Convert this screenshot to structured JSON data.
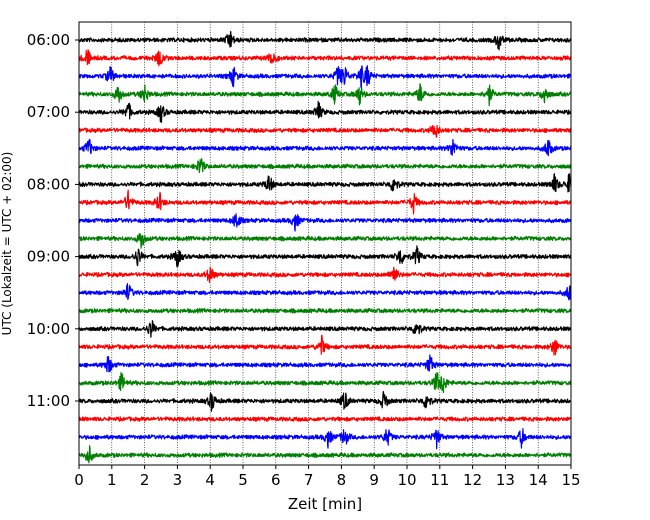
{
  "chart_data": {
    "type": "line",
    "xlabel": "Zeit  [min]",
    "ylabel": "UTC (Lokalzeit = UTC + 02:00)",
    "xlim": [
      0,
      15
    ],
    "x_ticks": [
      "0",
      "1",
      "2",
      "3",
      "4",
      "5",
      "6",
      "7",
      "8",
      "9",
      "10",
      "11",
      "12",
      "13",
      "14",
      "15"
    ],
    "y_ticks": [
      {
        "label": "06:00",
        "row": 0
      },
      {
        "label": "07:00",
        "row": 4
      },
      {
        "label": "08:00",
        "row": 8
      },
      {
        "label": "09:00",
        "row": 12
      },
      {
        "label": "10:00",
        "row": 16
      },
      {
        "label": "11:00",
        "row": 20
      }
    ],
    "vertical_grid": "dotted",
    "colors": [
      "#000000",
      "#ff0000",
      "#0000ff",
      "#008000"
    ],
    "traces": [
      {
        "row": 0,
        "start": "06:00",
        "color": "#000000",
        "events_min": [
          4.6,
          12.8
        ]
      },
      {
        "row": 1,
        "start": "06:15",
        "color": "#ff0000",
        "events_min": [
          0.25,
          2.45,
          5.9
        ]
      },
      {
        "row": 2,
        "start": "06:30",
        "color": "#0000ff",
        "events_min": [
          0.95,
          4.7,
          7.9,
          8.1,
          8.6,
          8.8
        ]
      },
      {
        "row": 3,
        "start": "06:45",
        "color": "#008000",
        "events_min": [
          1.2,
          2.0,
          7.8,
          8.55,
          10.4,
          12.5,
          14.2
        ]
      },
      {
        "row": 4,
        "start": "07:00",
        "color": "#000000",
        "events_min": [
          1.5,
          2.5,
          7.3
        ]
      },
      {
        "row": 5,
        "start": "07:15",
        "color": "#ff0000",
        "events_min": [
          10.85
        ]
      },
      {
        "row": 6,
        "start": "07:30",
        "color": "#0000ff",
        "events_min": [
          0.3,
          11.4,
          14.3
        ]
      },
      {
        "row": 7,
        "start": "07:45",
        "color": "#008000",
        "events_min": [
          3.7
        ]
      },
      {
        "row": 8,
        "start": "08:00",
        "color": "#000000",
        "events_min": [
          5.8,
          9.6,
          14.5,
          14.95
        ]
      },
      {
        "row": 9,
        "start": "08:15",
        "color": "#ff0000",
        "events_min": [
          1.5,
          2.45,
          10.2
        ]
      },
      {
        "row": 10,
        "start": "08:30",
        "color": "#0000ff",
        "events_min": [
          4.8,
          6.6
        ]
      },
      {
        "row": 11,
        "start": "08:45",
        "color": "#008000",
        "events_min": [
          1.9
        ]
      },
      {
        "row": 12,
        "start": "09:00",
        "color": "#000000",
        "events_min": [
          1.8,
          3.0,
          9.8,
          10.3
        ]
      },
      {
        "row": 13,
        "start": "09:15",
        "color": "#ff0000",
        "events_min": [
          4.0,
          9.6
        ]
      },
      {
        "row": 14,
        "start": "09:30",
        "color": "#0000ff",
        "events_min": [
          1.5,
          14.95
        ]
      },
      {
        "row": 15,
        "start": "09:45",
        "color": "#008000",
        "events_min": []
      },
      {
        "row": 16,
        "start": "10:00",
        "color": "#000000",
        "events_min": [
          2.2,
          10.3
        ]
      },
      {
        "row": 17,
        "start": "10:15",
        "color": "#ff0000",
        "events_min": [
          7.4,
          14.5
        ]
      },
      {
        "row": 18,
        "start": "10:30",
        "color": "#0000ff",
        "events_min": [
          0.9,
          10.7
        ]
      },
      {
        "row": 19,
        "start": "10:45",
        "color": "#008000",
        "events_min": [
          1.3,
          10.9,
          11.1
        ]
      },
      {
        "row": 20,
        "start": "11:00",
        "color": "#000000",
        "events_min": [
          4.05,
          8.1,
          9.3,
          10.6
        ]
      },
      {
        "row": 21,
        "start": "11:15",
        "color": "#ff0000",
        "events_min": []
      },
      {
        "row": 22,
        "start": "11:30",
        "color": "#0000ff",
        "events_min": [
          7.6,
          8.1,
          9.4,
          10.9,
          13.5
        ]
      },
      {
        "row": 23,
        "start": "11:45",
        "color": "#008000",
        "events_min": [
          0.3
        ]
      }
    ]
  }
}
